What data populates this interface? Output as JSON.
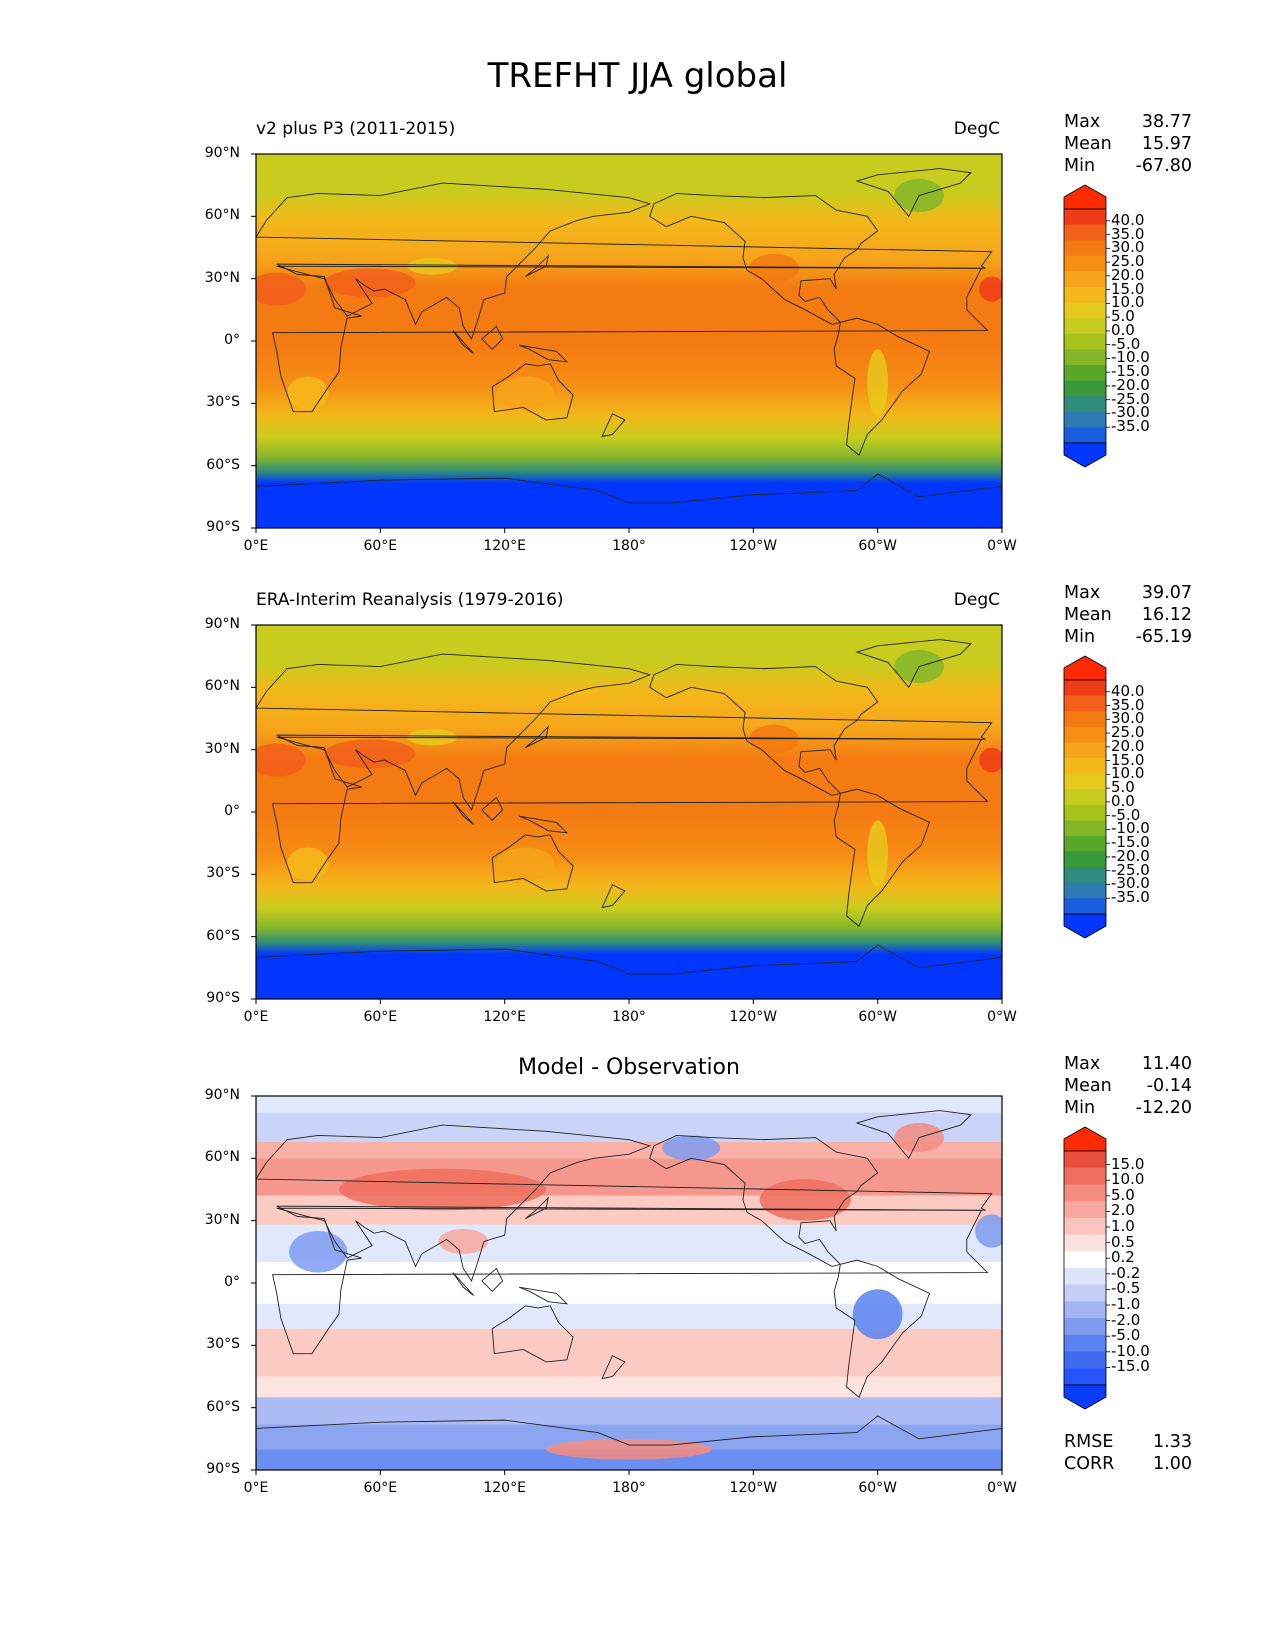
{
  "title": "TREFHT JJA global",
  "x_ticks": [
    "0°E",
    "60°E",
    "120°E",
    "180°",
    "120°W",
    "60°W",
    "0°W"
  ],
  "y_ticks": [
    "90°N",
    "60°N",
    "30°N",
    "0°",
    "30°S",
    "60°S",
    "90°S"
  ],
  "stat_labels": {
    "max": "Max",
    "mean": "Mean",
    "min": "Min",
    "rmse": "RMSE",
    "corr": "CORR"
  },
  "panels": [
    {
      "left_title": "v2 plus P3 (2011-2015)",
      "right_title": "DegC",
      "center_title": "",
      "stats": {
        "max": "38.77",
        "mean": "15.97",
        "min": "-67.80"
      },
      "colorbar_labels": [
        "40.0",
        "35.0",
        "30.0",
        "25.0",
        "20.0",
        "15.0",
        "10.0",
        "5.0",
        "0.0",
        "-5.0",
        "-10.0",
        "-15.0",
        "-20.0",
        "-25.0",
        "-30.0",
        "-35.0"
      ]
    },
    {
      "left_title": "ERA-Interim Reanalysis (1979-2016)",
      "right_title": "DegC",
      "center_title": "",
      "stats": {
        "max": "39.07",
        "mean": "16.12",
        "min": "-65.19"
      },
      "colorbar_labels": [
        "40.0",
        "35.0",
        "30.0",
        "25.0",
        "20.0",
        "15.0",
        "10.0",
        "5.0",
        "0.0",
        "-5.0",
        "-10.0",
        "-15.0",
        "-20.0",
        "-25.0",
        "-30.0",
        "-35.0"
      ]
    },
    {
      "left_title": "",
      "right_title": "",
      "center_title": "Model - Observation",
      "stats": {
        "max": "11.40",
        "mean": "-0.14",
        "min": "-12.20"
      },
      "extra": {
        "rmse": "1.33",
        "corr": "1.00"
      },
      "colorbar_labels": [
        "15.0",
        "10.0",
        "5.0",
        "2.0",
        "1.0",
        "0.5",
        "0.2",
        "-0.2",
        "-0.5",
        "-1.0",
        "-2.0",
        "-5.0",
        "-10.0",
        "-15.0"
      ]
    }
  ],
  "colors": {
    "temp_scale": [
      "#0036ff",
      "#1a5ee0",
      "#2e7ab4",
      "#2f8b7c",
      "#3a9a3a",
      "#5aa82a",
      "#84b62a",
      "#a8c21c",
      "#c7cc1e",
      "#e7c81c",
      "#f4b81a",
      "#f6a41a",
      "#f78e14",
      "#f47a12",
      "#f2601a",
      "#ee3d16",
      "#ff2a00"
    ],
    "diff_scale": [
      "#0a3cff",
      "#2453ff",
      "#3f6af0",
      "#5a82f0",
      "#7f9bf0",
      "#a3b4f3",
      "#c3cff7",
      "#dde5fb",
      "#ffffff",
      "#fde1de",
      "#fbc5bd",
      "#f8a89e",
      "#f48c80",
      "#ef6e5e",
      "#ea4f3e",
      "#ff2a00"
    ]
  }
}
